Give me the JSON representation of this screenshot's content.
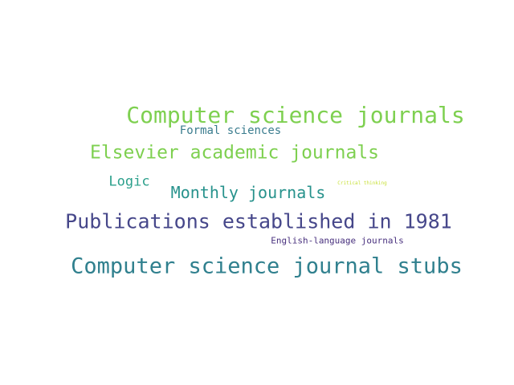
{
  "word_cloud": {
    "words": [
      {
        "text": "Computer science journals",
        "color": "#7ed050"
      },
      {
        "text": "Formal sciences",
        "color": "#3a7c8e"
      },
      {
        "text": "Elsevier academic journals",
        "color": "#7ed050"
      },
      {
        "text": "Logic",
        "color": "#2ca08c"
      },
      {
        "text": "Monthly journals",
        "color": "#27928c"
      },
      {
        "text": "Critical thinking",
        "color": "#c8e03a"
      },
      {
        "text": "Publications established in 1981",
        "color": "#46478a"
      },
      {
        "text": "English-language journals",
        "color": "#472f7d"
      },
      {
        "text": "Computer science journal stubs",
        "color": "#30808e"
      }
    ]
  }
}
